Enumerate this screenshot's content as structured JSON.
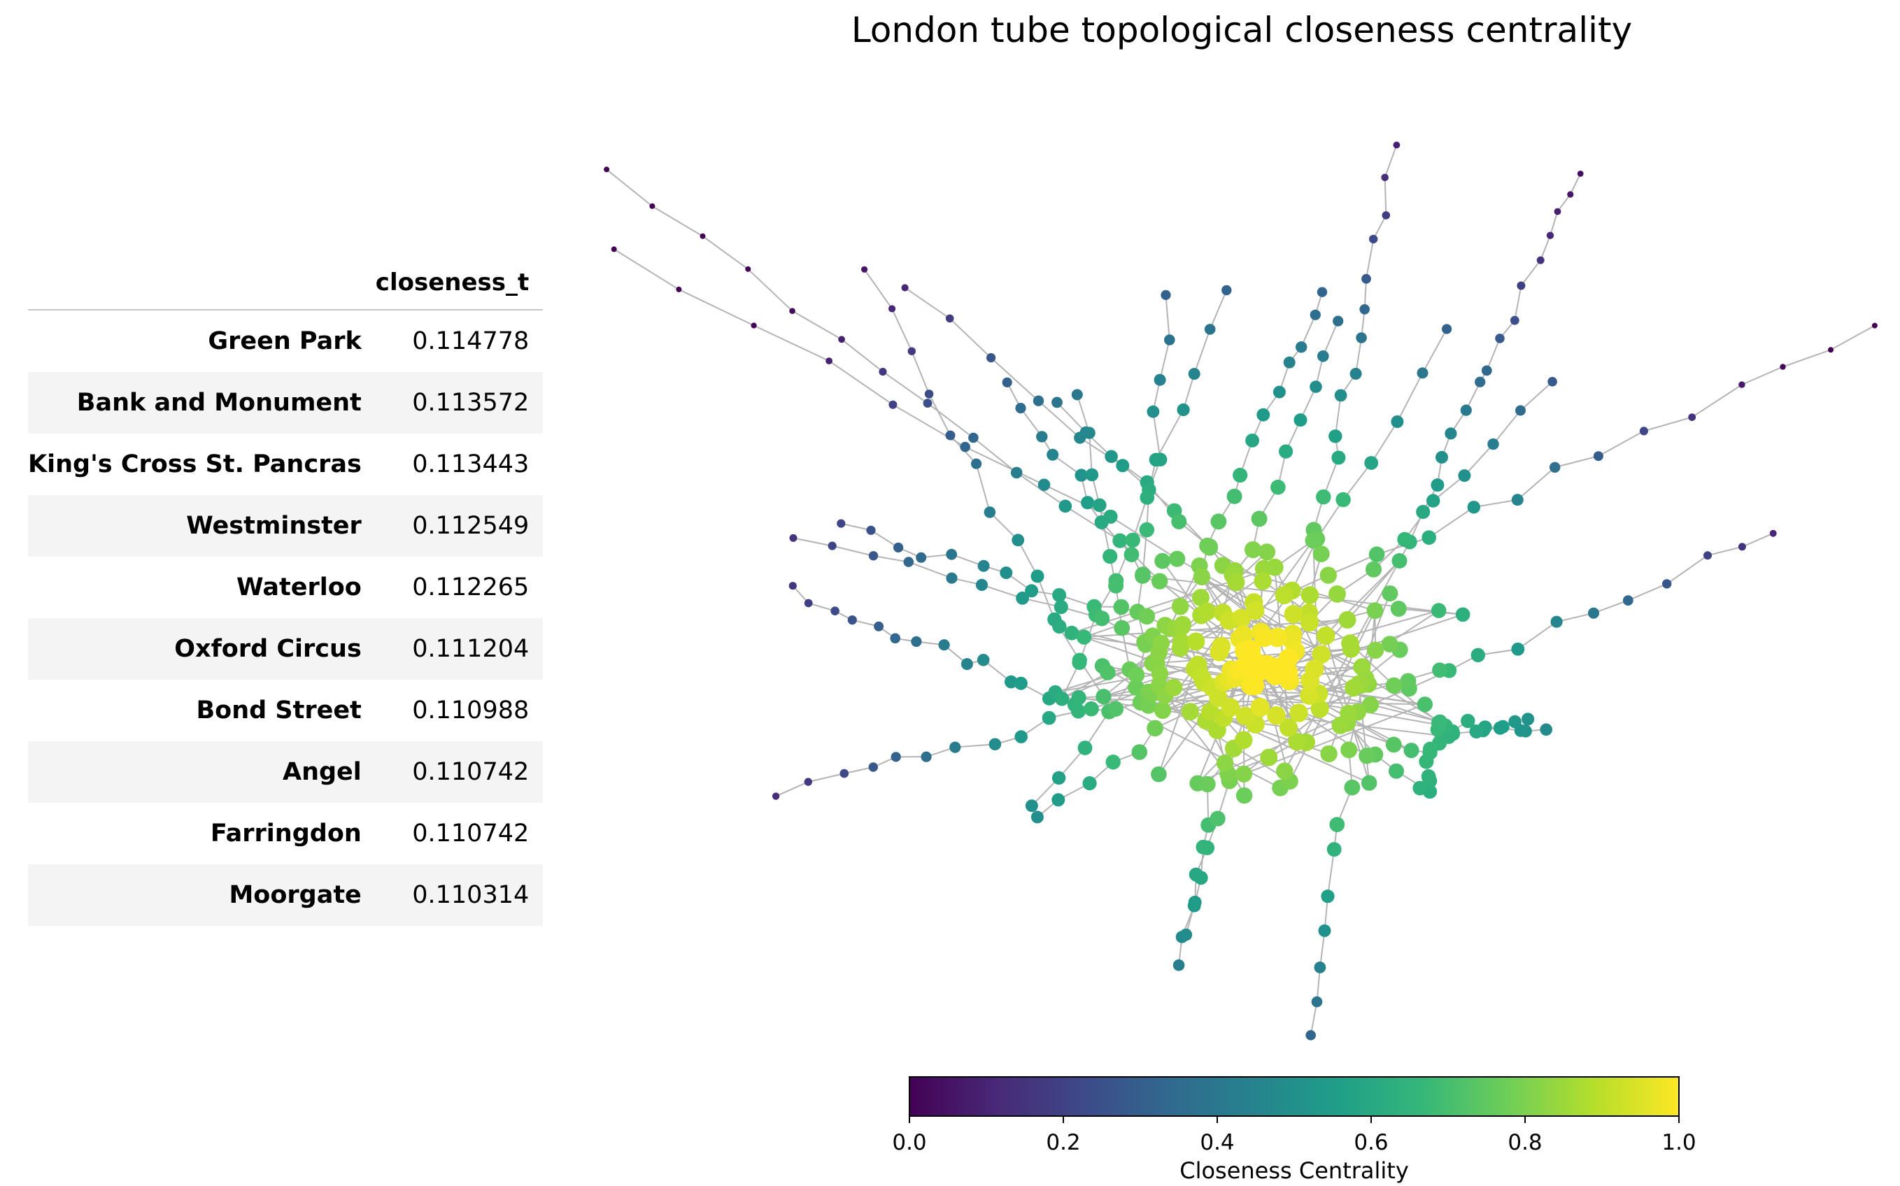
{
  "table": {
    "column_header": "closeness_t",
    "rows": [
      {
        "station": "Green Park",
        "value": "0.114778"
      },
      {
        "station": "Bank and Monument",
        "value": "0.113572"
      },
      {
        "station": "King's Cross St. Pancras",
        "value": "0.113443"
      },
      {
        "station": "Westminster",
        "value": "0.112549"
      },
      {
        "station": "Waterloo",
        "value": "0.112265"
      },
      {
        "station": "Oxford Circus",
        "value": "0.111204"
      },
      {
        "station": "Bond Street",
        "value": "0.110988"
      },
      {
        "station": "Angel",
        "value": "0.110742"
      },
      {
        "station": "Farringdon",
        "value": "0.110742"
      },
      {
        "station": "Moorgate",
        "value": "0.110314"
      }
    ]
  },
  "chart": {
    "title": "London tube topological closeness centrality",
    "colorbar": {
      "label": "Closeness Centrality",
      "range": [
        0.0,
        1.0
      ],
      "ticks": [
        "0.0",
        "0.2",
        "0.4",
        "0.6",
        "0.8",
        "1.0"
      ],
      "colormap": "viridis",
      "stops": [
        "#440154",
        "#482878",
        "#3e4989",
        "#31688e",
        "#26828e",
        "#1f9e89",
        "#35b779",
        "#6ece58",
        "#b5de2b",
        "#fde725"
      ]
    },
    "edge_color": "#b4b4b4"
  }
}
